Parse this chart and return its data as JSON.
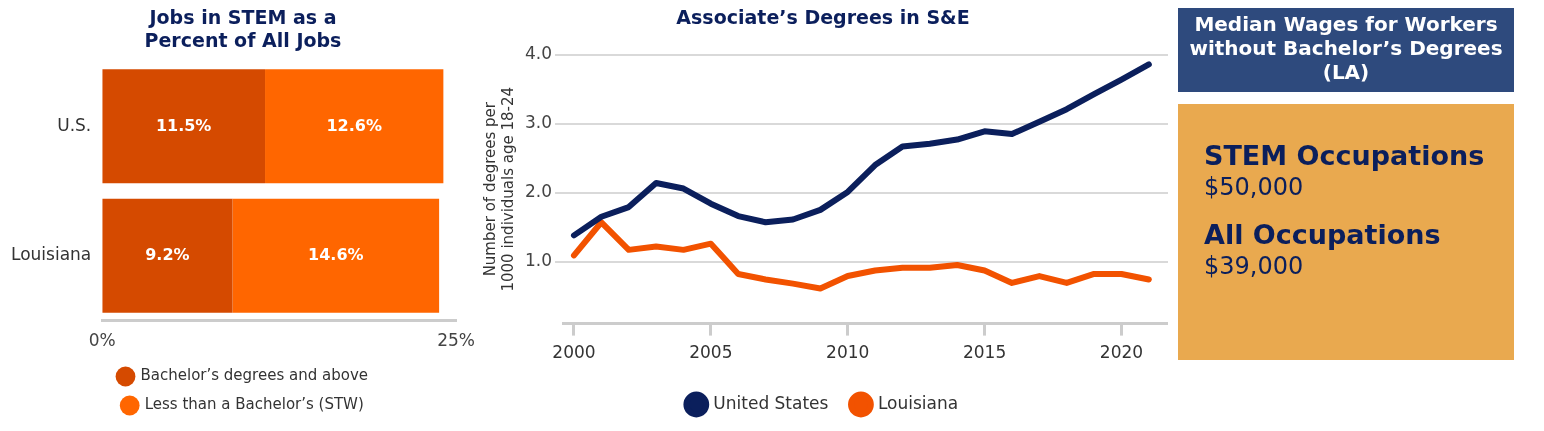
{
  "chart_data": [
    {
      "type": "bar",
      "title": "Jobs in STEM as a Percent of All Jobs",
      "orientation": "horizontal",
      "stacked": true,
      "categories": [
        "U.S.",
        "Louisiana"
      ],
      "xlim": [
        0,
        25
      ],
      "xticks": [
        {
          "value": 0,
          "label": "0%"
        },
        {
          "value": 25,
          "label": "25%"
        }
      ],
      "grid": false,
      "legend": "bottom",
      "series": [
        {
          "name": "Bachelor’s degrees and above",
          "color": "#d54a00",
          "values": [
            11.5,
            9.2
          ],
          "value_labels": [
            "11.5%",
            "9.2%"
          ]
        },
        {
          "name": "Less than a Bachelor’s (STW)",
          "color": "#ff6600",
          "values": [
            12.6,
            14.6
          ],
          "value_labels": [
            "12.6%",
            "14.6%"
          ]
        }
      ]
    },
    {
      "type": "line",
      "title": "Associate’s Degrees in S&E",
      "ylabel": "Number of degrees per 1000 individuals age 18-24",
      "x": [
        2000,
        2001,
        2002,
        2003,
        2004,
        2005,
        2006,
        2007,
        2008,
        2009,
        2010,
        2011,
        2012,
        2013,
        2014,
        2015,
        2016,
        2017,
        2018,
        2019,
        2020,
        2021
      ],
      "xlim": [
        1999.6,
        2021.7
      ],
      "xticks": [
        2000,
        2005,
        2010,
        2015,
        2020
      ],
      "ylim": [
        0.1,
        4.0
      ],
      "yticks": [
        {
          "value": 1,
          "label": "1.0"
        },
        {
          "value": 2,
          "label": "2.0"
        },
        {
          "value": 3,
          "label": "3.0"
        },
        {
          "value": 4,
          "label": "4.0"
        }
      ],
      "grid": "y",
      "legend": "bottom",
      "marker": "none",
      "line_style": "solid",
      "series": [
        {
          "name": "United States",
          "color": "#0b1f5c",
          "values": [
            1.38,
            1.65,
            1.79,
            2.14,
            2.06,
            1.84,
            1.66,
            1.57,
            1.61,
            1.75,
            2.01,
            2.4,
            2.67,
            2.71,
            2.77,
            2.89,
            2.85,
            3.03,
            3.21,
            3.43,
            3.64,
            3.86
          ]
        },
        {
          "name": "Louisiana",
          "color": "#f25200",
          "values": [
            1.09,
            1.57,
            1.17,
            1.22,
            1.17,
            1.26,
            0.82,
            0.74,
            0.68,
            0.61,
            0.79,
            0.87,
            0.91,
            0.91,
            0.95,
            0.87,
            0.69,
            0.79,
            0.69,
            0.82,
            0.82,
            0.74
          ]
        }
      ]
    },
    {
      "type": "other",
      "title": "Median Wages for Workers without Bachelor’s Degrees (LA)",
      "annotations": [
        "STEM Occupations",
        "$50,000",
        "All Occupations",
        "$39,000"
      ]
    }
  ]
}
